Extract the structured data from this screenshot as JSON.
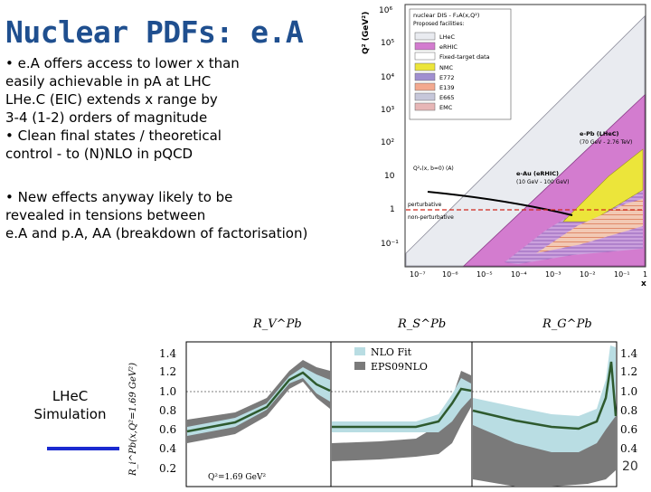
{
  "title": "Nuclear PDFs: e.A",
  "bullets_top": [
    "• e.A offers access to lower x than",
    "easily achievable in pA at LHC",
    "LHe.C (EIC) extends x range by",
    "3-4 (1-2) orders of magnitude",
    "• Clean final states / theoretical",
    "control - to (N)NLO in pQCD"
  ],
  "bullets_bottom": [
    "• New effects anyway likely to be",
    "revealed in tensions between",
    "e.A and p.A, AA (breakdown of factorisation)"
  ],
  "kinematic_plot": {
    "y_axis_label": "Q² (GeV²)",
    "y_ticks": [
      "10⁶",
      "10⁵",
      "10⁴",
      "10³",
      "10²",
      "10",
      "1",
      "10⁻¹"
    ],
    "x_ticks": [
      "10⁻⁷",
      "10⁻⁶",
      "10⁻⁵",
      "10⁻⁴",
      "10⁻³",
      "10⁻²",
      "10⁻¹",
      "1"
    ],
    "x_axis_label": "x",
    "legend_title": "nuclear DIS - F₂A(x,Q²)",
    "legend_proposed": "Proposed facilities:",
    "legend_items": [
      "LHeC",
      "eRHIC",
      "Fixed-target data",
      "NMC",
      "E772",
      "E139",
      "E665",
      "EMC"
    ],
    "legend_colors": [
      "#e9ebf0",
      "#d37ccf",
      "#ffffff",
      "#ece53a",
      "#a08fd0",
      "#f3a98f",
      "#c6c7da",
      "#e7b6b6"
    ],
    "annot_epb": "e-Pb (LHeC)",
    "annot_epb_sub": "(70 GeV - 2.76 TeV)",
    "annot_eau": "e-Au (eRHIC)",
    "annot_eau_sub": "(10 GeV - 100 GeV)",
    "annot_qs": "Q²ₛ(x, b=0) (A)",
    "annot_pert": "perturbative",
    "annot_nonpert": "non-perturbative"
  },
  "ratio_plot": {
    "panel_titles": [
      "R_V^Pb",
      "R_S^Pb",
      "R_G^Pb"
    ],
    "y_axis_label": "R_i^Pb(x,Q²=1.69 GeV²)",
    "y_ticks": [
      "1.4",
      "1.2",
      "1.0",
      "0.8",
      "0.6",
      "0.4",
      "0.2"
    ],
    "legend": [
      "NLO Fit",
      "EPS09NLO"
    ],
    "legend_colors": [
      "#b9dde3",
      "#7a7a7a"
    ],
    "note": "Q²=1.69 GeV²"
  },
  "lhec_label": [
    "LHeC",
    "Simulation"
  ],
  "page_number": "20"
}
